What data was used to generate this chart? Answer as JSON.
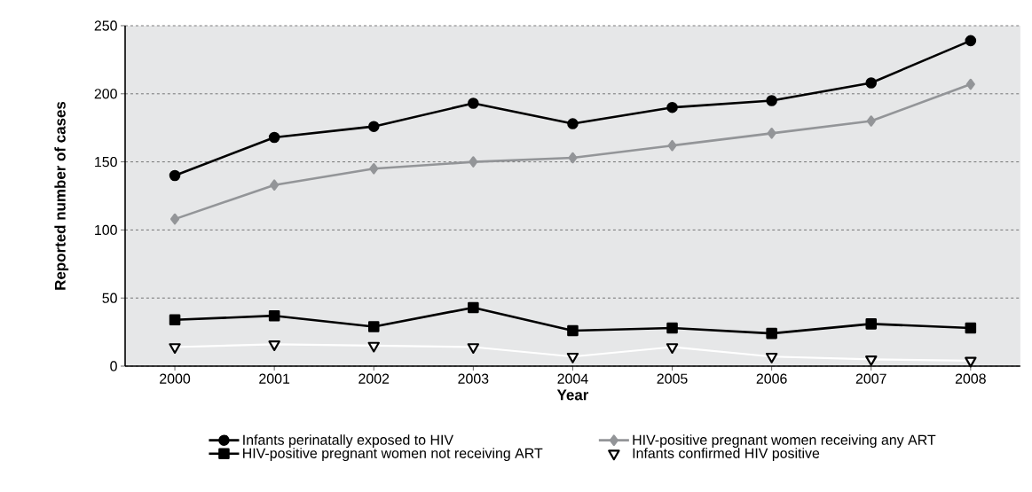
{
  "chart_data": {
    "type": "line",
    "xlabel": "Year",
    "ylabel": "Reported number of cases",
    "categories": [
      "2000",
      "2001",
      "2002",
      "2003",
      "2004",
      "2005",
      "2006",
      "2007",
      "2008"
    ],
    "series": [
      {
        "name": "Infants perinatally exposed to HIV",
        "color": "#000000",
        "marker": "circle",
        "values": [
          140,
          168,
          176,
          193,
          178,
          190,
          195,
          208,
          239
        ]
      },
      {
        "name": "HIV-positive pregnant women receiving any ART",
        "color": "#939598",
        "marker": "diamond",
        "values": [
          108,
          133,
          145,
          150,
          153,
          162,
          171,
          180,
          207
        ]
      },
      {
        "name": "HIV-positive pregnant women not receiving ART",
        "color": "#000000",
        "marker": "square",
        "values": [
          34,
          37,
          29,
          43,
          26,
          28,
          24,
          31,
          28
        ]
      },
      {
        "name": "Infants confirmed HIV positive",
        "color": "#ffffff",
        "marker": "triangle",
        "values": [
          14,
          16,
          15,
          14,
          7,
          14,
          7,
          5,
          4
        ]
      }
    ],
    "ylim": [
      0,
      250
    ],
    "yticks": [
      0,
      50,
      100,
      150,
      200,
      250
    ],
    "grid": "y",
    "legend": "bottom",
    "line_style": "solid"
  }
}
